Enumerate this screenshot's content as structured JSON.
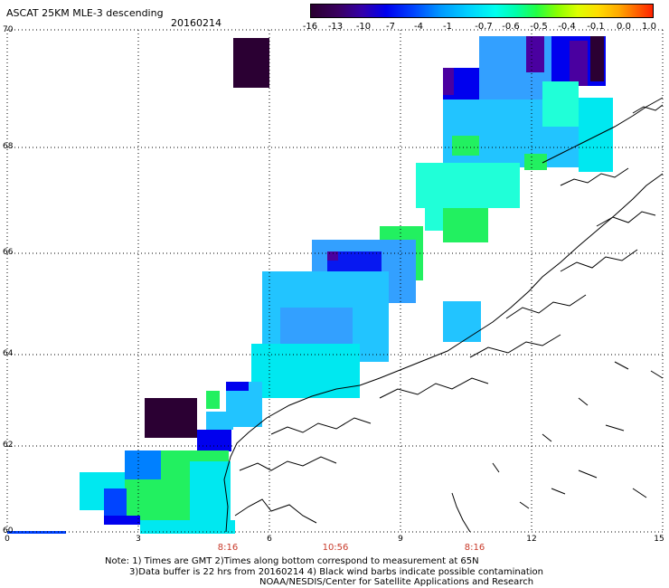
{
  "title": "ASCAT 25KM MLE-3 descending",
  "date": "20160214",
  "colorbar": {
    "labels": [
      "-16",
      "-13",
      "-10",
      "-7",
      "-4",
      "-1",
      "-0.7",
      "-0.6",
      "-0.5",
      "-0.4",
      "-0.1",
      "0.0",
      "1.0"
    ]
  },
  "lat_labels": [
    "70",
    "68",
    "66",
    "64",
    "62",
    "60"
  ],
  "lon_labels": [
    "0",
    "3",
    "6",
    "9",
    "12",
    "15"
  ],
  "time_labels": [
    "8:16",
    "10:56",
    "8:16"
  ],
  "notes": [
    "Note: 1) Times are GMT 2)Times along bottom correspond to measurement at 65N",
    "3)Data buffer is 22 hrs from 20160214 4) Black wind barbs indicate possible contamination",
    "NOAA/NESDIS/Center for Satellite Applications and Research"
  ],
  "colors": {
    "dark_purple": "#2b0033",
    "purple": "#4a00a0",
    "blue": "#0000ee",
    "light_blue": "#33a0ff",
    "sky": "#22c4ff",
    "cyan": "#00e8f0",
    "aqua": "#20ffd8",
    "green": "#22f060",
    "grid": "#000000"
  }
}
